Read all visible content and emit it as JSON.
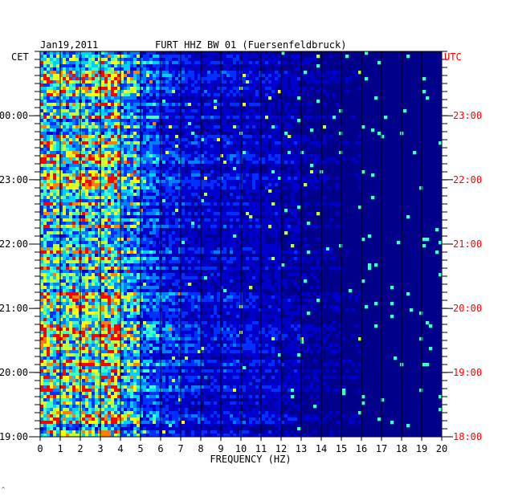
{
  "chart_data": {
    "type": "heatmap",
    "header_left": "Jan19,2011",
    "title": "FURT HHZ BW 01 (Fuersenfeldbruck)",
    "left_axis_label": "CET",
    "right_axis_label": "UTC",
    "xlabel": "FREQUENCY (HZ)",
    "xlim": [
      0,
      20
    ],
    "x_ticks": [
      "0",
      "1",
      "2",
      "3",
      "4",
      "5",
      "6",
      "7",
      "8",
      "9",
      "10",
      "11",
      "12",
      "13",
      "14",
      "15",
      "16",
      "17",
      "18",
      "19",
      "20"
    ],
    "y_ticks_left": [
      "00:00",
      "23:00",
      "22:00",
      "21:00",
      "20:00",
      "19:00"
    ],
    "y_ticks_right": [
      "23:00",
      "22:00",
      "21:00",
      "20:00",
      "19:00",
      "18:00"
    ],
    "y_tick_fractions": [
      0.167,
      0.333,
      0.5,
      0.667,
      0.833,
      1.0
    ],
    "colormap": [
      "#00008b",
      "#0000cd",
      "#0030ff",
      "#0080ff",
      "#00d0ff",
      "#40ffc0",
      "#c0ff40",
      "#ffff00",
      "#ff8000",
      "#ff0000"
    ],
    "grid": true,
    "grid_color": "#000000",
    "background_color": "#00008b",
    "right_axis_color": "#ff0000",
    "energy_profile_hz": [
      0.8,
      0.75,
      0.8,
      0.85,
      0.6,
      0.4,
      0.3,
      0.25,
      0.22,
      0.22,
      0.2,
      0.18,
      0.15,
      0.12,
      0.1,
      0.08,
      0.06,
      0.05,
      0.05,
      0.04
    ]
  },
  "corner_mark": "^"
}
